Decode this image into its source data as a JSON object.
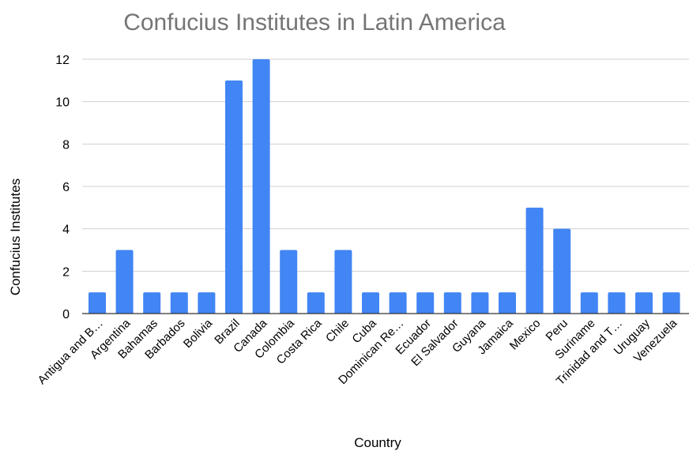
{
  "chart_data": {
    "type": "bar",
    "title": "Confucius Institutes in Latin America",
    "xlabel": "Country",
    "ylabel": "Confucius Institutes",
    "ylim": [
      0,
      12
    ],
    "yticks": [
      0,
      2,
      4,
      6,
      8,
      10,
      12
    ],
    "grid": true,
    "legend": "none",
    "bar_color": "#4285f4",
    "categories": [
      "Antigua and B…",
      "Argentina",
      "Bahamas",
      "Barbados",
      "Bolivia",
      "Brazil",
      "Canada",
      "Colombia",
      "Costa Rica",
      "Chile",
      "Cuba",
      "Dominican Re…",
      "Ecuador",
      "El Salvador",
      "Guyana",
      "Jamaica",
      "Mexico",
      "Peru",
      "Suriname",
      "Trinidad and T…",
      "Uruguay",
      "Venezuela"
    ],
    "values": [
      1,
      3,
      1,
      1,
      1,
      11,
      12,
      3,
      1,
      3,
      1,
      1,
      1,
      1,
      1,
      1,
      5,
      4,
      1,
      1,
      1,
      1
    ]
  }
}
